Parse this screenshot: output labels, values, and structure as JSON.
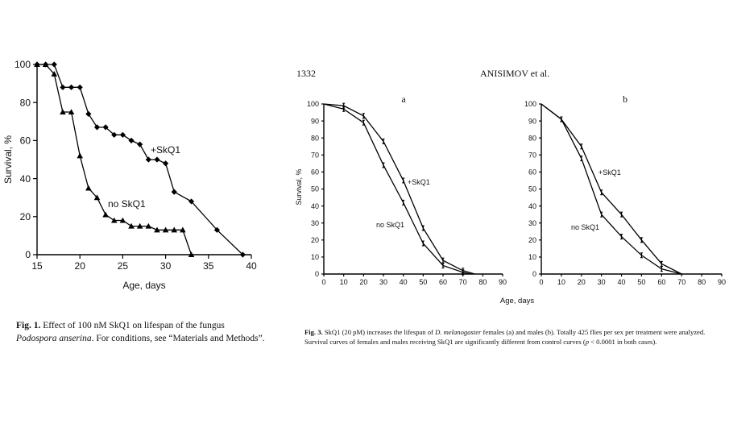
{
  "header": {
    "page_number": "1332",
    "authors": "ANISIMOV et al."
  },
  "fig1_caption": {
    "label": "Fig. 1.",
    "text_a": " Effect of 100 nM SkQ1 on lifespan of the fungus ",
    "italic": "Podospora anserina",
    "text_b": ". For conditions, see “Materials and Methods”."
  },
  "fig3_caption": {
    "label": "Fig. 3.",
    "text_a": " SkQ1 (20 pM) increases the lifespan of ",
    "italic": "D. melanogaster",
    "text_b": " females (a) and males (b). Totally 425 flies per sex per treatment were analyzed. Survival curves of females and males receiving SkQ1 are significantly different from control curves (",
    "italic_p": "p",
    "text_c": " < 0.0001 in both cases)."
  },
  "chart_data": [
    {
      "id": "fig1",
      "type": "line",
      "title": "",
      "xlabel": "Age, days",
      "ylabel": "Survival, %",
      "xlim": [
        15,
        40
      ],
      "ylim": [
        0,
        100
      ],
      "xticks": [
        15,
        20,
        25,
        30,
        35,
        40
      ],
      "yticks": [
        0,
        20,
        40,
        60,
        80,
        100
      ],
      "series": [
        {
          "name": "+SkQ1",
          "marker": "diamond",
          "x": [
            15,
            16,
            17,
            18,
            19,
            20,
            21,
            22,
            23,
            24,
            25,
            26,
            27,
            28,
            29,
            30,
            31,
            33,
            36,
            39
          ],
          "y": [
            100,
            100,
            100,
            88,
            88,
            88,
            74,
            67,
            67,
            63,
            63,
            60,
            58,
            50,
            50,
            48,
            33,
            28,
            13,
            0
          ]
        },
        {
          "name": "no SkQ1",
          "marker": "triangle",
          "x": [
            15,
            16,
            17,
            18,
            19,
            20,
            21,
            22,
            23,
            24,
            25,
            26,
            27,
            28,
            29,
            30,
            31,
            32,
            33
          ],
          "y": [
            100,
            100,
            95,
            75,
            75,
            52,
            35,
            30,
            21,
            18,
            18,
            15,
            15,
            15,
            13,
            13,
            13,
            13,
            0
          ]
        }
      ],
      "annotations": [
        "+SkQ1",
        "no SkQ1"
      ]
    },
    {
      "id": "fig3a",
      "type": "line",
      "title": "a",
      "xlabel": "",
      "ylabel": "Survival, %",
      "xlim": [
        0,
        90
      ],
      "ylim": [
        0,
        100
      ],
      "xticks": [
        0,
        10,
        20,
        30,
        40,
        50,
        60,
        70,
        80,
        90
      ],
      "yticks": [
        0,
        10,
        20,
        30,
        40,
        50,
        60,
        70,
        80,
        90,
        100
      ],
      "series": [
        {
          "name": "+SkQ1",
          "x": [
            0,
            10,
            20,
            30,
            40,
            50,
            60,
            70,
            76
          ],
          "y": [
            100,
            99,
            93,
            78,
            55,
            27,
            8,
            2,
            0
          ]
        },
        {
          "name": "no SkQ1",
          "x": [
            0,
            10,
            20,
            30,
            40,
            50,
            60,
            70,
            74
          ],
          "y": [
            100,
            97,
            89,
            64,
            42,
            18,
            5,
            1,
            0
          ]
        }
      ],
      "annotations": [
        "+SkQ1",
        "no SkQ1"
      ]
    },
    {
      "id": "fig3b",
      "type": "line",
      "title": "b",
      "xlabel": "",
      "ylabel": "",
      "xlim": [
        0,
        90
      ],
      "ylim": [
        0,
        100
      ],
      "xticks": [
        0,
        10,
        20,
        30,
        40,
        50,
        60,
        70,
        80,
        90
      ],
      "yticks": [
        0,
        10,
        20,
        30,
        40,
        50,
        60,
        70,
        80,
        90,
        100
      ],
      "series": [
        {
          "name": "+SkQ1",
          "x": [
            0,
            10,
            20,
            30,
            40,
            50,
            60,
            70
          ],
          "y": [
            100,
            91,
            75,
            48,
            35,
            20,
            6,
            0
          ]
        },
        {
          "name": "no SkQ1",
          "x": [
            0,
            10,
            20,
            30,
            40,
            50,
            60,
            70
          ],
          "y": [
            100,
            91,
            68,
            35,
            22,
            11,
            3,
            0
          ]
        }
      ],
      "annotations": [
        "+SkQ1",
        "no SkQ1"
      ]
    }
  ],
  "shared_xlabel_fig3": "Age, days"
}
